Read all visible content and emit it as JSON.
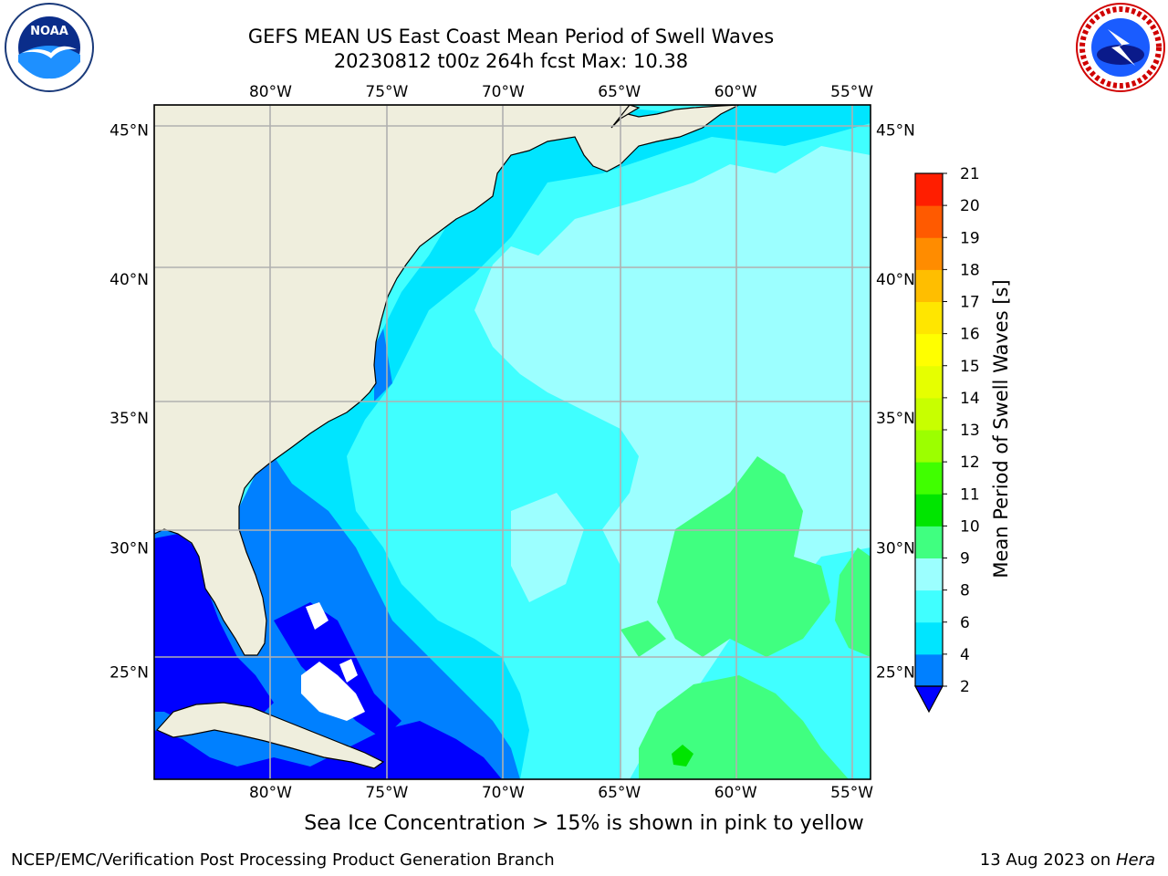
{
  "title": {
    "line1": "GEFS MEAN US East Coast Mean Period of Swell Waves",
    "line2": "20230812 t00z 264h fcst   Max: 10.38"
  },
  "logos": {
    "left": {
      "name": "noaa-logo",
      "text": "NOAA"
    },
    "right": {
      "name": "nws-logo",
      "text": "NATIONAL WEATHER SERVICE"
    }
  },
  "map": {
    "lon_ticks": [
      "80°W",
      "75°W",
      "70°W",
      "65°W",
      "60°W",
      "55°W"
    ],
    "lat_ticks": [
      "45°N",
      "40°N",
      "35°N",
      "30°N",
      "25°N"
    ],
    "lon_values": [
      -80,
      -75,
      -70,
      -65,
      -60,
      -55
    ],
    "lat_values": [
      45,
      40,
      35,
      30,
      25
    ],
    "extent": {
      "lon_min": -85,
      "lon_max": -54.2,
      "lat_min": 20.5,
      "lat_max": 45.8
    },
    "colors": {
      "land": "#efeedd",
      "grid": "#b0b0b0",
      "coast": "#000000"
    }
  },
  "colorbar": {
    "label": "Mean Period of Swell Waves [s]",
    "ticks": [
      "2",
      "4",
      "6",
      "8",
      "9",
      "10",
      "11",
      "12",
      "13",
      "14",
      "15",
      "16",
      "17",
      "18",
      "19",
      "20",
      "21"
    ],
    "levels": [
      2,
      4,
      6,
      8,
      9,
      10,
      11,
      12,
      13,
      14,
      15,
      16,
      17,
      18,
      19,
      20,
      21
    ],
    "colors": [
      "#0080ff",
      "#00e5ff",
      "#40ffff",
      "#9cffff",
      "#40ff80",
      "#00e500",
      "#40ff00",
      "#9cff00",
      "#c8ff00",
      "#e6ff00",
      "#ffff00",
      "#ffe600",
      "#ffbe00",
      "#ff8c00",
      "#ff5a00",
      "#ff1e00"
    ],
    "under_color": "#0000ff"
  },
  "ice_note": "Sea Ice Concentration > 15% is shown in pink to yellow",
  "footer": {
    "left": "NCEP/EMC/Verification Post Processing Product Generation Branch",
    "right_date": "13 Aug 2023 on ",
    "right_host": "Hera"
  }
}
